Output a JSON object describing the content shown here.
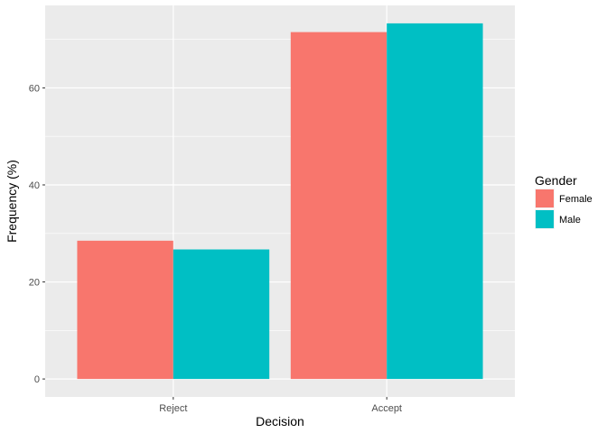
{
  "chart_data": {
    "type": "bar",
    "title": "",
    "xlabel": "Decision",
    "ylabel": "Frequency (%)",
    "categories": [
      "Reject",
      "Accept"
    ],
    "series": [
      {
        "name": "Female",
        "values": [
          28.5,
          71.5
        ],
        "color": "#F8766D"
      },
      {
        "name": "Male",
        "values": [
          26.7,
          73.3
        ],
        "color": "#00BFC4"
      }
    ],
    "ylim": [
      -3.7,
      77.0
    ],
    "yticks": [
      0,
      20,
      40,
      60
    ],
    "grid": true,
    "panel_background": "#EBEBEB",
    "gridline_color": "#FFFFFF",
    "legend": {
      "title": "Gender",
      "position": "right"
    }
  }
}
